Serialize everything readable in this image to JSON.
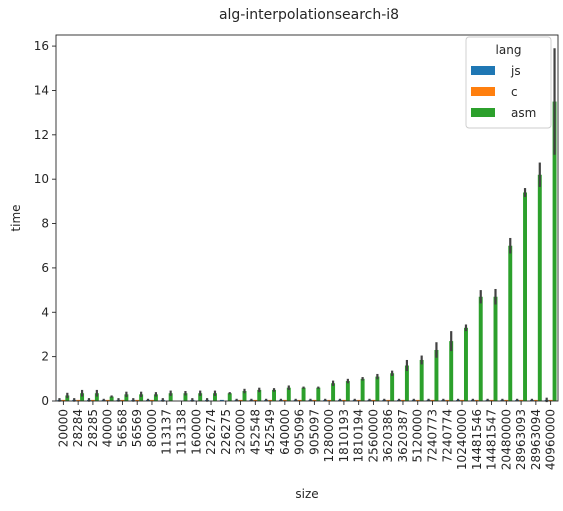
{
  "chart_data": {
    "type": "bar",
    "title": "alg-interpolationsearch-i8",
    "xlabel": "size",
    "ylabel": "time",
    "ylim": [
      0,
      16.5
    ],
    "yticks": [
      0,
      2,
      4,
      6,
      8,
      10,
      12,
      14,
      16
    ],
    "legend": {
      "title": "lang",
      "placement": "top-right"
    },
    "categories": [
      "20000",
      "28284",
      "28285",
      "40000",
      "56568",
      "56569",
      "80000",
      "113137",
      "113138",
      "160000",
      "226274",
      "226275",
      "320000",
      "452548",
      "452549",
      "640000",
      "905096",
      "905097",
      "1280000",
      "1810193",
      "1810194",
      "2560000",
      "3620386",
      "3620387",
      "5120000",
      "7240773",
      "7240774",
      "10240000",
      "14481546",
      "14481547",
      "20480000",
      "28963093",
      "28963094",
      "40960000"
    ],
    "series": [
      {
        "name": "js",
        "color": "#1f77b4",
        "values": [
          0.05,
          0.05,
          0.05,
          0.05,
          0.05,
          0.05,
          0.05,
          0.05,
          0,
          0.05,
          0.05,
          0.05,
          0.05,
          0.05,
          0.05,
          0.05,
          0.05,
          0.05,
          0.05,
          0.05,
          0.05,
          0.05,
          0.05,
          0.05,
          0.05,
          0.05,
          0.05,
          0.05,
          0.05,
          0.05,
          0.05,
          0.05,
          0.05,
          0.05
        ],
        "err": [
          0.08,
          0.08,
          0.08,
          0.05,
          0.08,
          0.08,
          0.05,
          0.08,
          0,
          0.08,
          0.08,
          0,
          0.05,
          0.05,
          0.05,
          0.05,
          0.05,
          0.05,
          0.05,
          0.05,
          0.05,
          0.05,
          0.05,
          0.05,
          0.05,
          0.05,
          0.05,
          0.05,
          0.05,
          0.05,
          0.05,
          0.05,
          0.05,
          0.1
        ]
      },
      {
        "name": "c",
        "color": "#ff7f0e",
        "values": [
          0.05,
          0.05,
          0.05,
          0.05,
          0.05,
          0.05,
          0.05,
          0,
          0,
          0,
          0,
          0,
          0.05,
          0.05,
          0.05,
          0.05,
          0.05,
          0.05,
          0.05,
          0.05,
          0.05,
          0.05,
          0.05,
          0.05,
          0.05,
          0.05,
          0.05,
          0.05,
          0.05,
          0.05,
          0.05,
          0.05,
          0.05,
          0.05
        ],
        "err": [
          0,
          0,
          0,
          0,
          0,
          0,
          0,
          0,
          0,
          0,
          0,
          0,
          0,
          0,
          0,
          0,
          0,
          0,
          0,
          0,
          0,
          0,
          0,
          0,
          0,
          0,
          0,
          0,
          0,
          0,
          0,
          0,
          0,
          0
        ]
      },
      {
        "name": "asm",
        "color": "#2ca02c",
        "values": [
          0.25,
          0.35,
          0.35,
          0.2,
          0.3,
          0.3,
          0.3,
          0.35,
          0.35,
          0.35,
          0.35,
          0.35,
          0.45,
          0.5,
          0.5,
          0.6,
          0.6,
          0.6,
          0.8,
          0.9,
          1.0,
          1.1,
          1.25,
          1.6,
          1.85,
          2.3,
          2.7,
          3.3,
          4.7,
          4.7,
          7.0,
          9.4,
          10.2,
          13.5
        ],
        "err": [
          0.12,
          0.15,
          0.15,
          0.05,
          0.12,
          0.12,
          0.1,
          0.12,
          0.1,
          0.12,
          0.12,
          0.05,
          0.1,
          0.1,
          0.08,
          0.1,
          0.05,
          0.05,
          0.12,
          0.1,
          0.08,
          0.12,
          0.12,
          0.25,
          0.2,
          0.35,
          0.45,
          0.15,
          0.3,
          0.35,
          0.35,
          0.2,
          0.55,
          2.4
        ]
      }
    ]
  }
}
